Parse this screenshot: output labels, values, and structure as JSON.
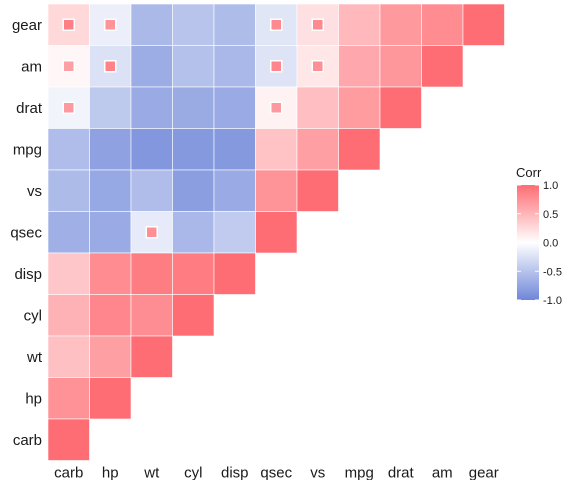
{
  "chart_data": {
    "type": "heatmap",
    "variables_x": [
      "carb",
      "hp",
      "wt",
      "cyl",
      "disp",
      "qsec",
      "vs",
      "mpg",
      "drat",
      "am",
      "gear"
    ],
    "variables_y": [
      "gear",
      "am",
      "drat",
      "mpg",
      "vs",
      "qsec",
      "disp",
      "cyl",
      "wt",
      "hp",
      "carb"
    ],
    "cells": [
      {
        "x": "carb",
        "y": "gear",
        "value": 0.27,
        "insignificant": true
      },
      {
        "x": "hp",
        "y": "gear",
        "value": -0.13,
        "insignificant": true
      },
      {
        "x": "wt",
        "y": "gear",
        "value": -0.58
      },
      {
        "x": "cyl",
        "y": "gear",
        "value": -0.49
      },
      {
        "x": "disp",
        "y": "gear",
        "value": -0.56
      },
      {
        "x": "qsec",
        "y": "gear",
        "value": -0.21,
        "insignificant": true
      },
      {
        "x": "vs",
        "y": "gear",
        "value": 0.21,
        "insignificant": true
      },
      {
        "x": "mpg",
        "y": "gear",
        "value": 0.48
      },
      {
        "x": "drat",
        "y": "gear",
        "value": 0.7
      },
      {
        "x": "am",
        "y": "gear",
        "value": 0.79
      },
      {
        "x": "gear",
        "y": "gear",
        "value": 1.0
      },
      {
        "x": "carb",
        "y": "am",
        "value": 0.06,
        "insignificant": true
      },
      {
        "x": "hp",
        "y": "am",
        "value": -0.24,
        "insignificant": true
      },
      {
        "x": "wt",
        "y": "am",
        "value": -0.69
      },
      {
        "x": "cyl",
        "y": "am",
        "value": -0.52
      },
      {
        "x": "disp",
        "y": "am",
        "value": -0.59
      },
      {
        "x": "qsec",
        "y": "am",
        "value": -0.23,
        "insignificant": true
      },
      {
        "x": "vs",
        "y": "am",
        "value": 0.17,
        "insignificant": true
      },
      {
        "x": "mpg",
        "y": "am",
        "value": 0.6
      },
      {
        "x": "drat",
        "y": "am",
        "value": 0.71
      },
      {
        "x": "am",
        "y": "am",
        "value": 1.0
      },
      {
        "x": "carb",
        "y": "drat",
        "value": -0.09,
        "insignificant": true
      },
      {
        "x": "hp",
        "y": "drat",
        "value": -0.45
      },
      {
        "x": "wt",
        "y": "drat",
        "value": -0.71
      },
      {
        "x": "cyl",
        "y": "drat",
        "value": -0.7
      },
      {
        "x": "disp",
        "y": "drat",
        "value": -0.71
      },
      {
        "x": "qsec",
        "y": "drat",
        "value": 0.09,
        "insignificant": true
      },
      {
        "x": "vs",
        "y": "drat",
        "value": 0.44
      },
      {
        "x": "mpg",
        "y": "drat",
        "value": 0.68
      },
      {
        "x": "drat",
        "y": "drat",
        "value": 1.0
      },
      {
        "x": "carb",
        "y": "mpg",
        "value": -0.55
      },
      {
        "x": "hp",
        "y": "mpg",
        "value": -0.78
      },
      {
        "x": "wt",
        "y": "mpg",
        "value": -0.87
      },
      {
        "x": "cyl",
        "y": "mpg",
        "value": -0.85
      },
      {
        "x": "disp",
        "y": "mpg",
        "value": -0.85
      },
      {
        "x": "qsec",
        "y": "mpg",
        "value": 0.42
      },
      {
        "x": "vs",
        "y": "mpg",
        "value": 0.66
      },
      {
        "x": "mpg",
        "y": "mpg",
        "value": 1.0
      },
      {
        "x": "carb",
        "y": "vs",
        "value": -0.57
      },
      {
        "x": "hp",
        "y": "vs",
        "value": -0.72
      },
      {
        "x": "wt",
        "y": "vs",
        "value": -0.55
      },
      {
        "x": "cyl",
        "y": "vs",
        "value": -0.81
      },
      {
        "x": "disp",
        "y": "vs",
        "value": -0.71
      },
      {
        "x": "qsec",
        "y": "vs",
        "value": 0.74
      },
      {
        "x": "vs",
        "y": "vs",
        "value": 1.0
      },
      {
        "x": "carb",
        "y": "qsec",
        "value": -0.66
      },
      {
        "x": "hp",
        "y": "qsec",
        "value": -0.71
      },
      {
        "x": "wt",
        "y": "qsec",
        "value": -0.17,
        "insignificant": true
      },
      {
        "x": "cyl",
        "y": "qsec",
        "value": -0.59
      },
      {
        "x": "disp",
        "y": "qsec",
        "value": -0.43
      },
      {
        "x": "qsec",
        "y": "qsec",
        "value": 1.0
      },
      {
        "x": "carb",
        "y": "disp",
        "value": 0.39
      },
      {
        "x": "hp",
        "y": "disp",
        "value": 0.79
      },
      {
        "x": "wt",
        "y": "disp",
        "value": 0.89
      },
      {
        "x": "cyl",
        "y": "disp",
        "value": 0.9
      },
      {
        "x": "disp",
        "y": "disp",
        "value": 1.0
      },
      {
        "x": "carb",
        "y": "cyl",
        "value": 0.53
      },
      {
        "x": "hp",
        "y": "cyl",
        "value": 0.83
      },
      {
        "x": "wt",
        "y": "cyl",
        "value": 0.78
      },
      {
        "x": "cyl",
        "y": "cyl",
        "value": 1.0
      },
      {
        "x": "carb",
        "y": "wt",
        "value": 0.43
      },
      {
        "x": "hp",
        "y": "wt",
        "value": 0.66
      },
      {
        "x": "wt",
        "y": "wt",
        "value": 1.0
      },
      {
        "x": "carb",
        "y": "hp",
        "value": 0.75
      },
      {
        "x": "hp",
        "y": "hp",
        "value": 1.0
      },
      {
        "x": "carb",
        "y": "carb",
        "value": 1.0
      }
    ],
    "legend": {
      "title": "Corr",
      "ticks": [
        "1.0",
        "0.5",
        "0.0",
        "-0.5",
        "-1.0"
      ],
      "tick_values": [
        1.0,
        0.5,
        0.0,
        -0.5,
        -1.0
      ],
      "placement": "right"
    },
    "colors": {
      "low": "#6D9EC1",
      "mid": "#FFFFFF",
      "high": "#E46726",
      "neg": "#6f87d9",
      "pos": "#fe6d74"
    },
    "value_range": [
      -1,
      1
    ],
    "grid": false
  }
}
